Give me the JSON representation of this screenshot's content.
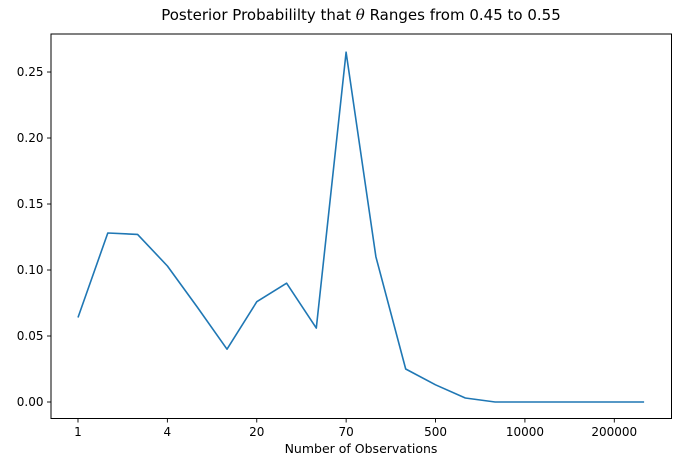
{
  "figure": {
    "title_prefix": "Posterior Probabililty that ",
    "title_theta": "θ",
    "title_suffix": " Ranges from 0.45 to 0.55",
    "xlabel": "Number of Observations"
  },
  "chart_data": {
    "type": "line",
    "title": "Posterior Probabililty that θ Ranges from 0.45 to 0.55",
    "xlabel": "Number of Observations",
    "ylabel": "",
    "x_index": [
      0,
      1,
      2,
      3,
      4,
      5,
      6,
      7,
      8,
      9,
      10,
      11,
      12,
      13,
      14,
      15,
      16,
      17,
      18,
      19
    ],
    "values": [
      0.064,
      0.128,
      0.127,
      0.103,
      0.072,
      0.04,
      0.076,
      0.09,
      0.056,
      0.265,
      0.11,
      0.025,
      0.013,
      0.003,
      0.0,
      0.0,
      0.0,
      0.0,
      0.0,
      0.0
    ],
    "x_tick_indices": [
      0,
      3,
      6,
      9,
      12,
      15,
      18
    ],
    "x_tick_labels": [
      "1",
      "4",
      "20",
      "70",
      "500",
      "10000",
      "200000"
    ],
    "y_tick_values": [
      0.0,
      0.05,
      0.1,
      0.15,
      0.2,
      0.25
    ],
    "y_tick_labels": [
      "0.00",
      "0.05",
      "0.10",
      "0.15",
      "0.20",
      "0.25"
    ],
    "xlim": [
      -0.906,
      19.92
    ],
    "ylim": [
      -0.0125,
      0.2788
    ],
    "grid": false,
    "legend": null,
    "line_color": "#1f77b4",
    "axis_color": "#000000",
    "background": "#ffffff"
  }
}
